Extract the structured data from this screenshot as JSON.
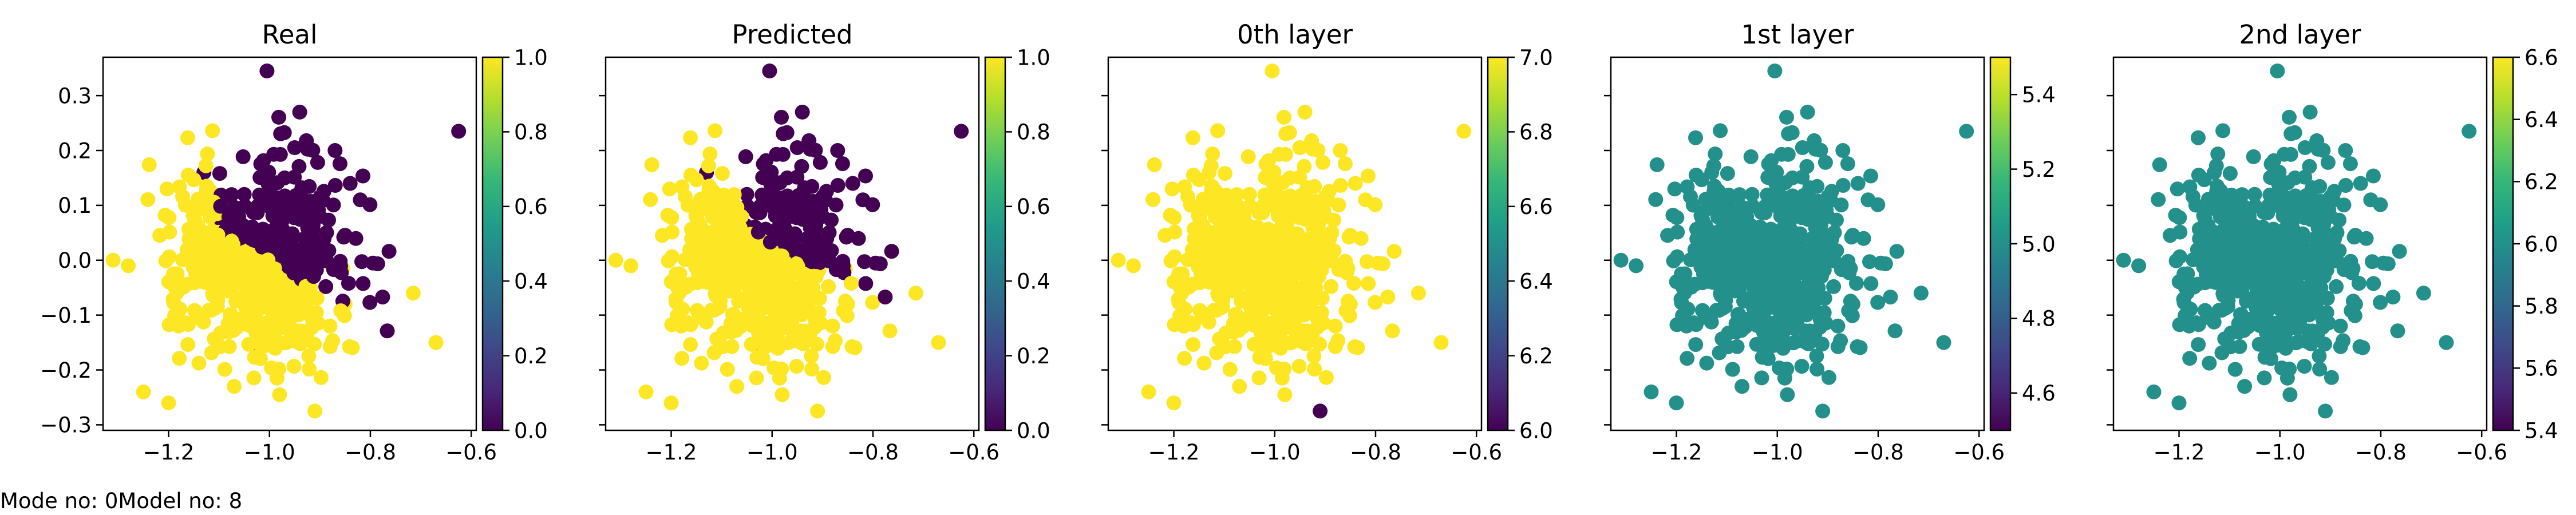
{
  "footer": {
    "mode_text": "Mode no: 0Model no: 8"
  },
  "colors": {
    "purple": "#440154",
    "yellow": "#fde725",
    "teal": "#21918c",
    "axes": "#000000",
    "background": "#ffffff"
  },
  "colormap": "viridis",
  "marker": "filled-circle",
  "chart_data": [
    {
      "type": "scatter",
      "title": "Real",
      "xlim": [
        -1.33,
        -0.59
      ],
      "ylim": [
        -0.31,
        0.37
      ],
      "xticks": [
        -1.2,
        -1.0,
        -0.8,
        -0.6
      ],
      "xtick_labels": [
        "−1.2",
        "−1.0",
        "−0.8",
        "−0.6"
      ],
      "yticks": [
        -0.3,
        -0.2,
        -0.1,
        0.0,
        0.1,
        0.2,
        0.3
      ],
      "ytick_labels": [
        "−0.3",
        "−0.2",
        "−0.1",
        "0.0",
        "0.1",
        "0.2",
        "0.3"
      ],
      "show_ytick_labels": true,
      "colorbar": {
        "range": [
          0.0,
          1.0
        ],
        "ticks": [
          0.0,
          0.2,
          0.4,
          0.6,
          0.8,
          1.0
        ],
        "tick_labels": [
          "0.0",
          "0.2",
          "0.4",
          "0.6",
          "0.8",
          "1.0"
        ]
      },
      "mode": "class",
      "outlier_values": [
        1,
        0
      ]
    },
    {
      "type": "scatter",
      "title": "Predicted",
      "xlim": [
        -1.33,
        -0.59
      ],
      "ylim": [
        -0.31,
        0.37
      ],
      "xticks": [
        -1.2,
        -1.0,
        -0.8,
        -0.6
      ],
      "xtick_labels": [
        "−1.2",
        "−1.0",
        "−0.8",
        "−0.6"
      ],
      "yticks": [
        -0.3,
        -0.2,
        -0.1,
        0.0,
        0.1,
        0.2,
        0.3
      ],
      "ytick_labels": [
        "",
        "",
        "",
        "",
        "",
        "",
        ""
      ],
      "show_ytick_labels": false,
      "colorbar": {
        "range": [
          0.0,
          1.0
        ],
        "ticks": [
          0.0,
          0.2,
          0.4,
          0.6,
          0.8,
          1.0
        ],
        "tick_labels": [
          "0.0",
          "0.2",
          "0.4",
          "0.6",
          "0.8",
          "1.0"
        ]
      },
      "mode": "class-predicted",
      "outlier_values": [
        1,
        0
      ]
    },
    {
      "type": "scatter",
      "title": "0th layer",
      "xlim": [
        -1.33,
        -0.59
      ],
      "ylim": [
        -0.31,
        0.37
      ],
      "xticks": [
        -1.2,
        -1.0,
        -0.8,
        -0.6
      ],
      "xtick_labels": [
        "−1.2",
        "−1.0",
        "−0.8",
        "−0.6"
      ],
      "yticks": [
        -0.3,
        -0.2,
        -0.1,
        0.0,
        0.1,
        0.2,
        0.3
      ],
      "ytick_labels": [
        "",
        "",
        "",
        "",
        "",
        "",
        ""
      ],
      "show_ytick_labels": false,
      "colorbar": {
        "range": [
          6.0,
          7.0
        ],
        "ticks": [
          6.0,
          6.2,
          6.4,
          6.6,
          6.8,
          7.0
        ],
        "tick_labels": [
          "6.0",
          "6.2",
          "6.4",
          "6.6",
          "6.8",
          "7.0"
        ]
      },
      "mode": "constant",
      "constant_value": 7.0,
      "low_point": {
        "x": -0.91,
        "y": -0.275,
        "value": 6.0
      }
    },
    {
      "type": "scatter",
      "title": "1st layer",
      "xlim": [
        -1.33,
        -0.59
      ],
      "ylim": [
        -0.31,
        0.37
      ],
      "xticks": [
        -1.2,
        -1.0,
        -0.8,
        -0.6
      ],
      "xtick_labels": [
        "−1.2",
        "−1.0",
        "−0.8",
        "−0.6"
      ],
      "yticks": [
        -0.3,
        -0.2,
        -0.1,
        0.0,
        0.1,
        0.2,
        0.3
      ],
      "ytick_labels": [
        "",
        "",
        "",
        "",
        "",
        "",
        ""
      ],
      "show_ytick_labels": false,
      "colorbar": {
        "range": [
          4.5,
          5.5
        ],
        "ticks": [
          4.6,
          4.8,
          5.0,
          5.2,
          5.4
        ],
        "tick_labels": [
          "4.6",
          "4.8",
          "5.0",
          "5.2",
          "5.4"
        ]
      },
      "mode": "constant",
      "constant_value": 5.0
    },
    {
      "type": "scatter",
      "title": "2nd layer",
      "xlim": [
        -1.33,
        -0.59
      ],
      "ylim": [
        -0.31,
        0.37
      ],
      "xticks": [
        -1.2,
        -1.0,
        -0.8,
        -0.6
      ],
      "xtick_labels": [
        "−1.2",
        "−1.0",
        "−0.8",
        "−0.6"
      ],
      "yticks": [
        -0.3,
        -0.2,
        -0.1,
        0.0,
        0.1,
        0.2,
        0.3
      ],
      "ytick_labels": [
        "",
        "",
        "",
        "",
        "",
        "",
        ""
      ],
      "show_ytick_labels": false,
      "colorbar": {
        "range": [
          5.4,
          6.6
        ],
        "ticks": [
          5.4,
          5.6,
          5.8,
          6.0,
          6.2,
          6.4,
          6.6
        ],
        "tick_labels": [
          "5.4",
          "5.6",
          "5.8",
          "6.0",
          "6.2",
          "6.4",
          "6.6"
        ]
      },
      "mode": "constant",
      "constant_value": 6.0
    }
  ],
  "points": [
    {
      "x": -1.005,
      "y": 0.345,
      "label": 0
    },
    {
      "x": -0.625,
      "y": 0.235,
      "label": 0
    },
    {
      "x": -0.91,
      "y": -0.275,
      "label": 1
    },
    {
      "x": -0.855,
      "y": -0.015,
      "label": 1
    },
    {
      "x": -0.715,
      "y": -0.06,
      "label": 1
    },
    {
      "x": -0.67,
      "y": -0.15,
      "label": 1
    },
    {
      "x": -1.31,
      "y": 0.0,
      "label": 1
    },
    {
      "x": -1.28,
      "y": -0.01,
      "label": 1
    },
    {
      "x": -1.25,
      "y": -0.24,
      "label": 1
    },
    {
      "x": -1.2,
      "y": -0.26,
      "label": 1
    },
    {
      "x": -0.98,
      "y": -0.245,
      "label": 1
    },
    {
      "x": -1.07,
      "y": -0.23,
      "label": 1
    },
    {
      "x": -0.94,
      "y": 0.27,
      "label": 0
    },
    {
      "x": -1.13,
      "y": 0.16,
      "label": 0
    },
    {
      "x": -0.87,
      "y": 0.2,
      "label": 0
    },
    {
      "x": -0.84,
      "y": 0.14,
      "label": 0
    },
    {
      "x": -0.82,
      "y": 0.11,
      "label": 0
    },
    {
      "x": -1.0,
      "y": 0.05,
      "label": 0
    },
    {
      "x": -0.93,
      "y": 0.04,
      "label": 0
    },
    {
      "x": -0.9,
      "y": 0.08,
      "label": 0
    },
    {
      "x": -1.05,
      "y": 0.12,
      "label": 0
    },
    {
      "x": -0.97,
      "y": 0.15,
      "label": 0
    },
    {
      "x": -0.95,
      "y": 0.0,
      "label": 0
    },
    {
      "x": -0.98,
      "y": -0.02,
      "label": 0
    },
    {
      "x": -1.0,
      "y": -0.08,
      "label": 0
    },
    {
      "x": -1.02,
      "y": -0.16,
      "label": 0
    },
    {
      "x": -1.1,
      "y": 0.06,
      "label": 1
    },
    {
      "x": -1.15,
      "y": 0.0,
      "label": 1
    },
    {
      "x": -1.18,
      "y": -0.12,
      "label": 1
    },
    {
      "x": -0.88,
      "y": -0.12,
      "label": 1
    },
    {
      "x": -0.85,
      "y": -0.08,
      "label": 1
    }
  ]
}
